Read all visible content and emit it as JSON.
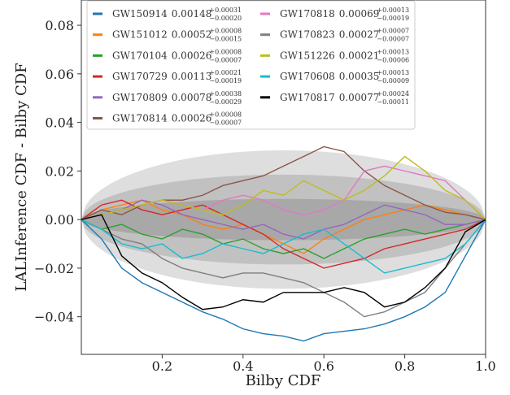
{
  "chart_data": {
    "type": "line",
    "xlabel": "Bilby CDF",
    "ylabel": "LALInference CDF - Bilby CDF",
    "xlim": [
      0,
      1
    ],
    "ylim": [
      -0.0555,
      0.0904
    ],
    "xticks": [
      0.2,
      0.4,
      0.6,
      0.8,
      {
        "value": 1,
        "label": "1.0"
      }
    ],
    "yticks": [
      {
        "value": -0.04,
        "label": "−0.04"
      },
      {
        "value": -0.02,
        "label": "−0.02"
      },
      {
        "value": 0,
        "label": "0.00"
      },
      0.02,
      0.04,
      0.06,
      0.08
    ],
    "legend_loc": "upper left",
    "bands": [
      0.0285,
      0.0185,
      0.0085
    ],
    "x": [
      0,
      0.05,
      0.1,
      0.15,
      0.2,
      0.25,
      0.3,
      0.35,
      0.4,
      0.45,
      0.5,
      0.55,
      0.6,
      0.65,
      0.7,
      0.75,
      0.8,
      0.85,
      0.9,
      0.95,
      1
    ],
    "series": [
      {
        "name": "GW150914",
        "legend_value": "0.00148",
        "legend_plus": "+0.00031",
        "legend_minus": "−0.00020",
        "color": "#1f77b4",
        "values": [
          0,
          -0.008,
          -0.02,
          -0.026,
          -0.03,
          -0.034,
          -0.038,
          -0.041,
          -0.045,
          -0.047,
          -0.048,
          -0.05,
          -0.047,
          -0.046,
          -0.045,
          -0.043,
          -0.04,
          -0.036,
          -0.03,
          -0.015,
          0
        ]
      },
      {
        "name": "GW151012",
        "legend_value": "0.00052",
        "legend_plus": "+0.00008",
        "legend_minus": "−0.00015",
        "color": "#ff7f0e",
        "values": [
          0,
          0.004,
          0.006,
          0.008,
          0.004,
          0.002,
          -0.002,
          -0.004,
          -0.002,
          -0.006,
          -0.01,
          -0.014,
          -0.008,
          -0.004,
          0,
          0.002,
          0.004,
          0.006,
          0.004,
          0.002,
          0
        ]
      },
      {
        "name": "GW170104",
        "legend_value": "0.00026",
        "legend_plus": "+0.00008",
        "legend_minus": "−0.00007",
        "color": "#2ca02c",
        "values": [
          0,
          -0.004,
          -0.002,
          -0.006,
          -0.008,
          -0.004,
          -0.006,
          -0.01,
          -0.008,
          -0.012,
          -0.014,
          -0.012,
          -0.016,
          -0.012,
          -0.008,
          -0.006,
          -0.004,
          -0.006,
          -0.004,
          -0.002,
          0
        ]
      },
      {
        "name": "GW170729",
        "legend_value": "0.00113",
        "legend_plus": "+0.00021",
        "legend_minus": "−0.00019",
        "color": "#d62728",
        "values": [
          0,
          0.006,
          0.008,
          0.004,
          0.002,
          0.004,
          0.006,
          0.002,
          -0.002,
          -0.006,
          -0.012,
          -0.016,
          -0.02,
          -0.018,
          -0.016,
          -0.012,
          -0.01,
          -0.008,
          -0.006,
          -0.004,
          0
        ]
      },
      {
        "name": "GW170809",
        "legend_value": "0.00078",
        "legend_plus": "+0.00038",
        "legend_minus": "−0.00029",
        "color": "#9467bd",
        "values": [
          0,
          0.002,
          0.004,
          0.008,
          0.006,
          0.002,
          0,
          -0.002,
          -0.004,
          -0.002,
          -0.006,
          -0.008,
          -0.004,
          -0.002,
          0.002,
          0.006,
          0.004,
          0.002,
          -0.002,
          -0.002,
          0
        ]
      },
      {
        "name": "GW170814",
        "legend_value": "0.00026",
        "legend_plus": "+0.00008",
        "legend_minus": "−0.00007",
        "color": "#8c564b",
        "values": [
          0,
          0.004,
          0.002,
          0.006,
          0.008,
          0.008,
          0.01,
          0.014,
          0.016,
          0.018,
          0.022,
          0.026,
          0.03,
          0.028,
          0.02,
          0.014,
          0.01,
          0.006,
          0.003,
          0.002,
          0
        ]
      },
      {
        "name": "GW170818",
        "legend_value": "0.00069",
        "legend_plus": "+0.00013",
        "legend_minus": "−0.00019",
        "color": "#e377c2",
        "values": [
          0,
          0.002,
          0.004,
          0.006,
          0.008,
          0.006,
          0.004,
          0.008,
          0.01,
          0.008,
          0.004,
          0.002,
          0.004,
          0.008,
          0.02,
          0.022,
          0.02,
          0.018,
          0.016,
          0.008,
          0
        ]
      },
      {
        "name": "GW170823",
        "legend_value": "0.00027",
        "legend_plus": "+0.00007",
        "legend_minus": "−0.00007",
        "color": "#7f7f7f",
        "values": [
          0,
          -0.004,
          -0.008,
          -0.01,
          -0.016,
          -0.02,
          -0.022,
          -0.024,
          -0.022,
          -0.022,
          -0.024,
          -0.026,
          -0.03,
          -0.034,
          -0.04,
          -0.038,
          -0.034,
          -0.03,
          -0.02,
          -0.01,
          0
        ]
      },
      {
        "name": "GW151226",
        "legend_value": "0.00021",
        "legend_plus": "+0.00013",
        "legend_minus": "−0.00006",
        "color": "#bcbd22",
        "values": [
          0,
          0.002,
          0.004,
          0.006,
          0.008,
          0.006,
          0.004,
          0.002,
          0.006,
          0.012,
          0.01,
          0.016,
          0.012,
          0.008,
          0.012,
          0.018,
          0.026,
          0.02,
          0.012,
          0.008,
          0
        ]
      },
      {
        "name": "GW170608",
        "legend_value": "0.00035",
        "legend_plus": "+0.00013",
        "legend_minus": "−0.00009",
        "color": "#17becf",
        "values": [
          0,
          -0.004,
          -0.01,
          -0.012,
          -0.01,
          -0.016,
          -0.014,
          -0.01,
          -0.012,
          -0.014,
          -0.01,
          -0.006,
          -0.004,
          -0.01,
          -0.016,
          -0.022,
          -0.02,
          -0.018,
          -0.016,
          -0.01,
          0
        ]
      },
      {
        "name": "GW170817",
        "legend_value": "0.00077",
        "legend_plus": "+0.00024",
        "legend_minus": "−0.00011",
        "color": "#000000",
        "values": [
          0,
          0.002,
          -0.015,
          -0.022,
          -0.026,
          -0.032,
          -0.037,
          -0.036,
          -0.033,
          -0.034,
          -0.03,
          -0.03,
          -0.03,
          -0.028,
          -0.03,
          -0.036,
          -0.034,
          -0.028,
          -0.02,
          -0.005,
          0
        ]
      }
    ]
  }
}
